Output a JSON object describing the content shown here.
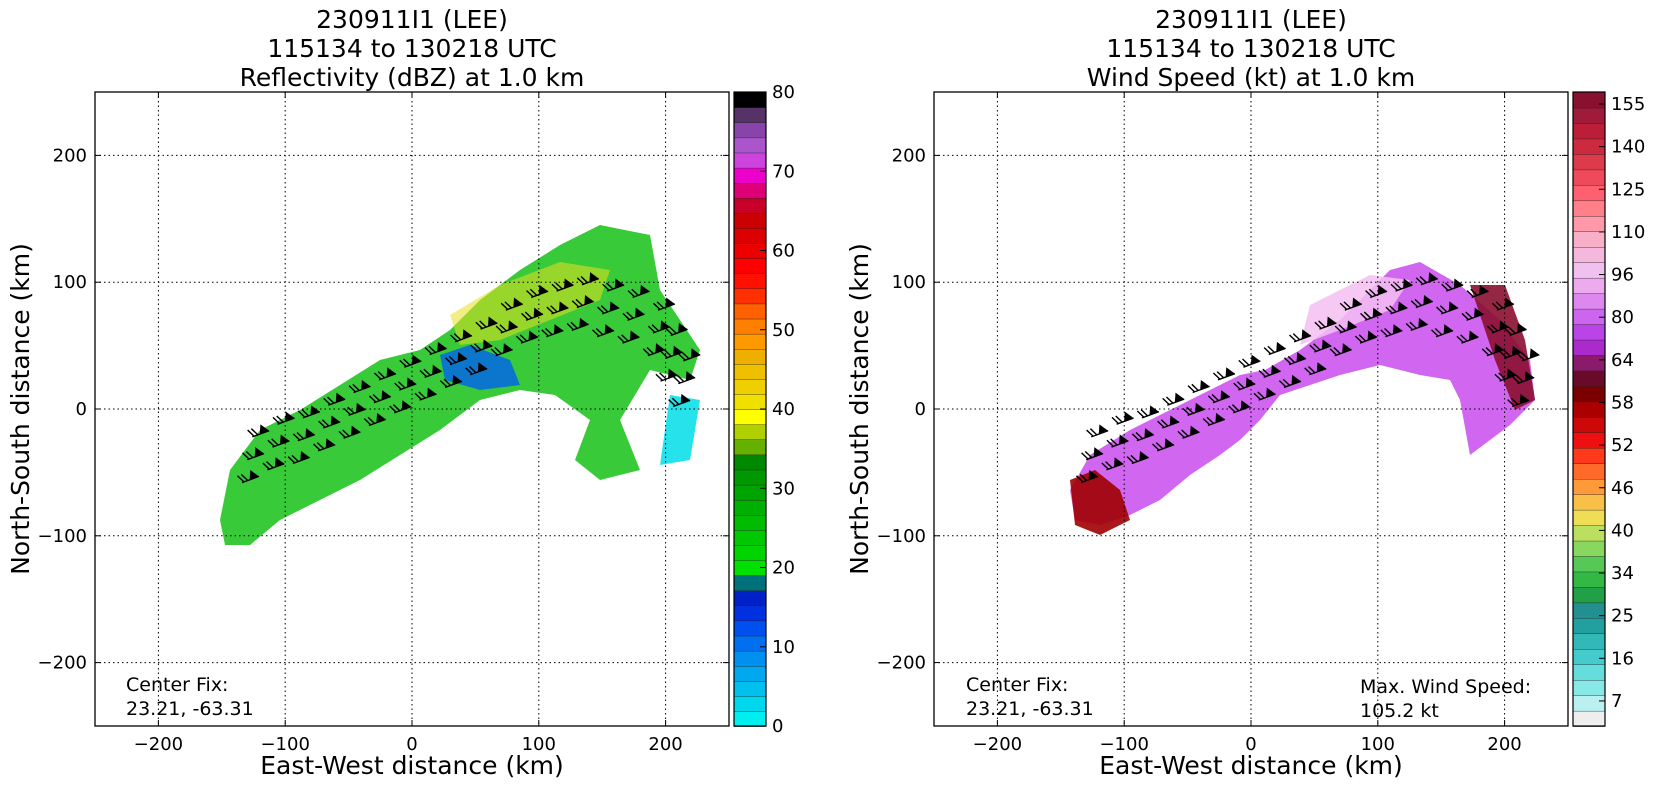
{
  "chart_data": [
    {
      "type": "heatmap",
      "title_lines": [
        "230911I1 (LEE)",
        "115134 to 130218 UTC",
        "Reflectivity (dBZ) at 1.0 km"
      ],
      "xlabel": "East-West distance (km)",
      "ylabel": "North-South distance (km)",
      "xlim": [
        -250,
        250
      ],
      "ylim": [
        -250,
        250
      ],
      "xticks": [
        -200,
        -100,
        0,
        100,
        200
      ],
      "yticks": [
        200,
        100,
        0,
        -100,
        -200
      ],
      "grid": true,
      "annotation_left": [
        "Center Fix:",
        "23.21, -63.31"
      ],
      "annotation_right": [],
      "colorbar": {
        "min": 0,
        "max": 80,
        "ticks": [
          "0",
          "10",
          "20",
          "30",
          "40",
          "50",
          "60",
          "70",
          "80"
        ],
        "colors": [
          "#00eeee",
          "#00d8ee",
          "#00c0ee",
          "#00a8f0",
          "#0090f0",
          "#0070f0",
          "#0050f0",
          "#0030e0",
          "#0020c8",
          "#00707a",
          "#00e000",
          "#00d400",
          "#00c800",
          "#00bc00",
          "#00b000",
          "#00a400",
          "#009800",
          "#008800",
          "#66b000",
          "#b0d000",
          "#ffff00",
          "#f0e000",
          "#eed000",
          "#eec000",
          "#eeb000",
          "#ff9900",
          "#ff8000",
          "#ff6000",
          "#ff3000",
          "#ff1000",
          "#ff0000",
          "#ee0000",
          "#dd0000",
          "#cc0000",
          "#c80028",
          "#dd0077",
          "#ee00cc",
          "#cc44dd",
          "#aa55cc",
          "#8844aa",
          "#553366",
          "#000000"
        ]
      },
      "wind_barbs": true,
      "region_color": "#22c422"
    },
    {
      "type": "heatmap",
      "title_lines": [
        "230911I1 (LEE)",
        "115134 to 130218 UTC",
        "Wind Speed (kt) at 1.0 km"
      ],
      "xlabel": "East-West distance (km)",
      "ylabel": "North-South distance (km)",
      "xlim": [
        -250,
        250
      ],
      "ylim": [
        -250,
        250
      ],
      "xticks": [
        -200,
        -100,
        0,
        100,
        200
      ],
      "yticks": [
        200,
        100,
        0,
        -100,
        -200
      ],
      "grid": true,
      "annotation_left": [
        "Center Fix:",
        "23.21, -63.31"
      ],
      "annotation_right": [
        "Max. Wind Speed:",
        "105.2 kt"
      ],
      "colorbar": {
        "ticks": [
          "7",
          "16",
          "25",
          "34",
          "40",
          "46",
          "52",
          "58",
          "64",
          "80",
          "96",
          "110",
          "125",
          "140",
          "155"
        ],
        "colors": [
          "#eeeeee",
          "#bbf0f0",
          "#88e8e8",
          "#66dddd",
          "#44cccc",
          "#33b8b8",
          "#22a0a0",
          "#229090",
          "#22a048",
          "#33b844",
          "#55c855",
          "#88d860",
          "#bbe060",
          "#eedd55",
          "#f8c048",
          "#ff9a3a",
          "#ff6a2a",
          "#ff3a1a",
          "#ee1010",
          "#cc0808",
          "#aa0000",
          "#7a0000",
          "#6a0a2a",
          "#8a1a6a",
          "#aa2acc",
          "#bb44e8",
          "#cc66ee",
          "#dd88ee",
          "#ee aaee",
          "#f0c0f0",
          "#f4b8dd",
          "#f8b0c8",
          "#ff98a8",
          "#ff8088",
          "#ff6070",
          "#ee4a5a",
          "#dd3a4a",
          "#cc2a3e",
          "#bb1e36",
          "#a01a3a",
          "#8a1030"
        ]
      },
      "wind_barbs": true,
      "region_color": "#cc55ee"
    }
  ]
}
